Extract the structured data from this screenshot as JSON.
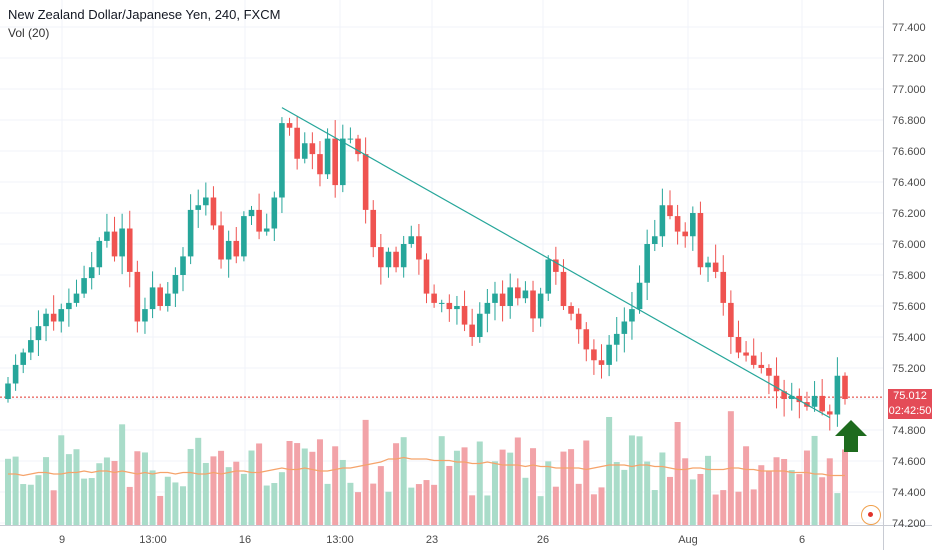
{
  "header": {
    "title": "New Zealand Dollar/Japanese Yen, 240, FXCM",
    "volume_label": "Vol (20)"
  },
  "price_tags": {
    "last_price": "75.012",
    "countdown": "02:42:50"
  },
  "colors": {
    "up": "#26a69a",
    "down": "#ef5350",
    "vol_up": "#a9dcc9",
    "vol_down": "#f2a3a8",
    "trendline": "#26a69a",
    "volume_ma": "#f5a36b",
    "arrow": "#1e6b1e",
    "price_line": "#e0332b"
  },
  "icons": {
    "annotation": "up-arrow-icon",
    "goto_realtime": "goto-realtime-icon"
  },
  "chart_data": {
    "type": "candlestick",
    "title": "New Zealand Dollar/Japanese Yen, 240, FXCM",
    "y_axis": {
      "side": "right",
      "range": [
        74.15,
        77.5
      ],
      "ticks": [
        "77.400",
        "77.200",
        "77.000",
        "76.800",
        "76.600",
        "76.400",
        "76.200",
        "76.000",
        "75.800",
        "75.600",
        "75.400",
        "75.200",
        "74.800",
        "74.600",
        "74.400",
        "74.200"
      ]
    },
    "x_axis": {
      "labels": [
        "9",
        "13:00",
        "16",
        "13:00",
        "23",
        "26",
        "Aug",
        "6"
      ]
    },
    "grid": true,
    "closes": [
      75.1,
      75.22,
      75.3,
      75.38,
      75.47,
      75.55,
      75.5,
      75.58,
      75.62,
      75.68,
      75.78,
      75.85,
      76.02,
      76.08,
      75.92,
      76.1,
      75.82,
      75.5,
      75.58,
      75.72,
      75.6,
      75.68,
      75.8,
      75.92,
      76.22,
      76.25,
      76.3,
      76.12,
      75.9,
      76.02,
      75.92,
      76.18,
      76.22,
      76.08,
      76.1,
      76.3,
      76.78,
      76.75,
      76.55,
      76.65,
      76.58,
      76.45,
      76.68,
      76.38,
      76.68,
      76.68,
      76.58,
      76.22,
      75.98,
      75.85,
      75.95,
      75.85,
      76.0,
      76.05,
      75.9,
      75.68,
      75.62,
      75.62,
      75.58,
      75.6,
      75.48,
      75.4,
      75.55,
      75.62,
      75.68,
      75.6,
      75.72,
      75.65,
      75.7,
      75.52,
      75.68,
      75.9,
      75.82,
      75.6,
      75.55,
      75.45,
      75.32,
      75.25,
      75.22,
      75.35,
      75.42,
      75.5,
      75.58,
      75.75,
      76.0,
      76.05,
      76.25,
      76.18,
      76.08,
      76.05,
      76.2,
      75.85,
      75.88,
      75.82,
      75.62,
      75.4,
      75.3,
      75.28,
      75.22,
      75.2,
      75.15,
      75.05,
      75.0,
      75.02,
      74.98,
      74.95,
      75.02,
      74.92,
      74.9,
      75.15,
      75.0
    ],
    "volume_ma": [
      0.34,
      0.34,
      0.33,
      0.34,
      0.35,
      0.35,
      0.34,
      0.34,
      0.35,
      0.35,
      0.36,
      0.35,
      0.36,
      0.36,
      0.35,
      0.36,
      0.35,
      0.34,
      0.35,
      0.34,
      0.35,
      0.35,
      0.34,
      0.35,
      0.35,
      0.34,
      0.34,
      0.35,
      0.34,
      0.35,
      0.36,
      0.36,
      0.35,
      0.35,
      0.36,
      0.37,
      0.38,
      0.37,
      0.37,
      0.38,
      0.37,
      0.36,
      0.36,
      0.37,
      0.38,
      0.38,
      0.39,
      0.4,
      0.41,
      0.42,
      0.44,
      0.44,
      0.45,
      0.44,
      0.44,
      0.44,
      0.43,
      0.43,
      0.43,
      0.42,
      0.42,
      0.41,
      0.41,
      0.42,
      0.41,
      0.4,
      0.4,
      0.4,
      0.39,
      0.4,
      0.39,
      0.39,
      0.38,
      0.38,
      0.38,
      0.38,
      0.37,
      0.38,
      0.39,
      0.4,
      0.4,
      0.4,
      0.39,
      0.4,
      0.4,
      0.39,
      0.39,
      0.38,
      0.37,
      0.37,
      0.38,
      0.38,
      0.37,
      0.37,
      0.37,
      0.38,
      0.38,
      0.37,
      0.37,
      0.36,
      0.36,
      0.36,
      0.36,
      0.35,
      0.35,
      0.35,
      0.34,
      0.34,
      0.33,
      0.33,
      0.33
    ],
    "volume_scale": "relative (0-1 of volume pane height)",
    "trendline": {
      "from": {
        "bar": 36,
        "price": 76.88
      },
      "to": {
        "bar": 108,
        "price": 74.88
      }
    },
    "current_price": 75.012,
    "annotation": "green up arrow below last candles"
  }
}
